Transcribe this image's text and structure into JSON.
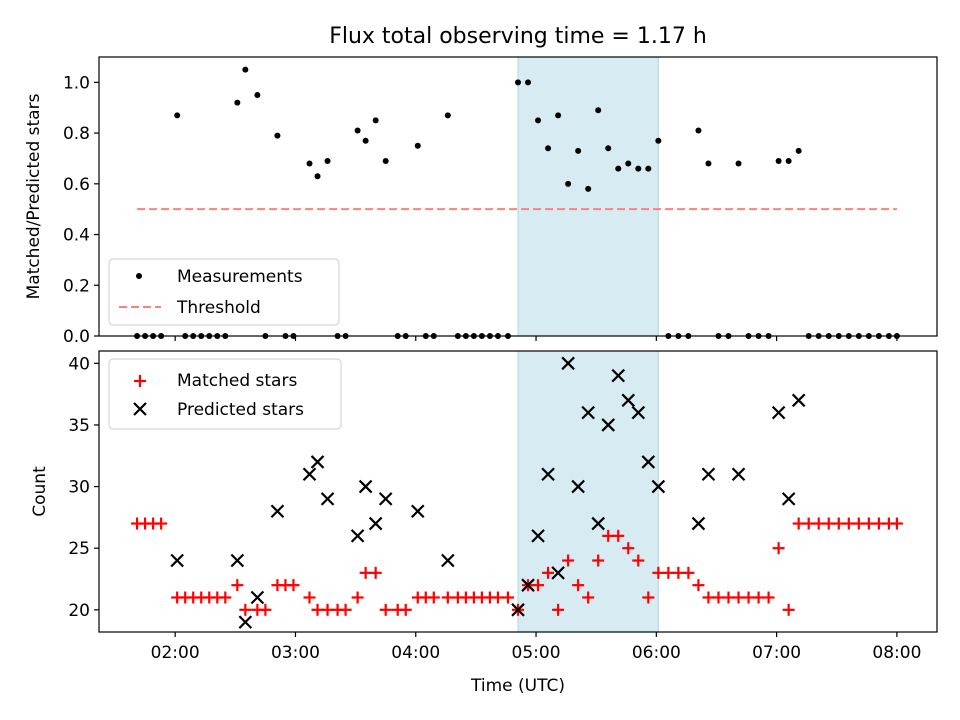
{
  "title": "Flux total observing time = 1.17 h",
  "colors": {
    "measurement": "#000000",
    "threshold": "#ff7f7f",
    "matched": "#ff0000",
    "predicted": "#000000",
    "highlight": "#add8e6"
  },
  "chart_data": [
    {
      "type": "scatter",
      "ylabel": "Matched/Predicted stars",
      "ylim": [
        0,
        1.1
      ],
      "yticks": [
        "0.0",
        "0.2",
        "0.4",
        "0.6",
        "0.8",
        "1.0"
      ],
      "xlim": [
        "01:22",
        "08:20"
      ],
      "highlight_span": [
        "04:51",
        "06:01"
      ],
      "legend": {
        "placement": "lower-left",
        "measurements_label": "Measurements",
        "threshold_label": "Threshold"
      },
      "threshold": {
        "value": 0.5,
        "x_range": [
          "01:41",
          "08:00"
        ]
      },
      "measurements": [
        {
          "t": "01:41",
          "v": 0
        },
        {
          "t": "01:45",
          "v": 0
        },
        {
          "t": "01:49",
          "v": 0
        },
        {
          "t": "01:53",
          "v": 0
        },
        {
          "t": "02:01",
          "v": 0.87
        },
        {
          "t": "02:05",
          "v": 0
        },
        {
          "t": "02:09",
          "v": 0
        },
        {
          "t": "02:13",
          "v": 0
        },
        {
          "t": "02:17",
          "v": 0
        },
        {
          "t": "02:21",
          "v": 0
        },
        {
          "t": "02:25",
          "v": 0
        },
        {
          "t": "02:31",
          "v": 0.92
        },
        {
          "t": "02:35",
          "v": 1.05
        },
        {
          "t": "02:41",
          "v": 0.95
        },
        {
          "t": "02:45",
          "v": 0
        },
        {
          "t": "02:51",
          "v": 0.79
        },
        {
          "t": "02:55",
          "v": 0
        },
        {
          "t": "02:59",
          "v": 0
        },
        {
          "t": "03:07",
          "v": 0.68
        },
        {
          "t": "03:11",
          "v": 0.63
        },
        {
          "t": "03:16",
          "v": 0.69
        },
        {
          "t": "03:21",
          "v": 0
        },
        {
          "t": "03:25",
          "v": 0
        },
        {
          "t": "03:31",
          "v": 0.81
        },
        {
          "t": "03:35",
          "v": 0.77
        },
        {
          "t": "03:40",
          "v": 0.85
        },
        {
          "t": "03:45",
          "v": 0.69
        },
        {
          "t": "03:51",
          "v": 0
        },
        {
          "t": "03:55",
          "v": 0
        },
        {
          "t": "04:01",
          "v": 0.75
        },
        {
          "t": "04:05",
          "v": 0
        },
        {
          "t": "04:09",
          "v": 0
        },
        {
          "t": "04:16",
          "v": 0.87
        },
        {
          "t": "04:21",
          "v": 0
        },
        {
          "t": "04:25",
          "v": 0
        },
        {
          "t": "04:29",
          "v": 0
        },
        {
          "t": "04:33",
          "v": 0
        },
        {
          "t": "04:37",
          "v": 0
        },
        {
          "t": "04:41",
          "v": 0
        },
        {
          "t": "04:46",
          "v": 0
        },
        {
          "t": "04:51",
          "v": 1.0
        },
        {
          "t": "04:56",
          "v": 1.0
        },
        {
          "t": "05:01",
          "v": 0.85
        },
        {
          "t": "05:06",
          "v": 0.74
        },
        {
          "t": "05:11",
          "v": 0.87
        },
        {
          "t": "05:16",
          "v": 0.6
        },
        {
          "t": "05:21",
          "v": 0.73
        },
        {
          "t": "05:26",
          "v": 0.58
        },
        {
          "t": "05:31",
          "v": 0.89
        },
        {
          "t": "05:36",
          "v": 0.74
        },
        {
          "t": "05:41",
          "v": 0.66
        },
        {
          "t": "05:46",
          "v": 0.68
        },
        {
          "t": "05:51",
          "v": 0.66
        },
        {
          "t": "05:56",
          "v": 0.66
        },
        {
          "t": "06:01",
          "v": 0.77
        },
        {
          "t": "06:06",
          "v": 0
        },
        {
          "t": "06:11",
          "v": 0
        },
        {
          "t": "06:16",
          "v": 0
        },
        {
          "t": "06:21",
          "v": 0.81
        },
        {
          "t": "06:26",
          "v": 0.68
        },
        {
          "t": "06:31",
          "v": 0
        },
        {
          "t": "06:36",
          "v": 0
        },
        {
          "t": "06:41",
          "v": 0.68
        },
        {
          "t": "06:46",
          "v": 0
        },
        {
          "t": "06:51",
          "v": 0
        },
        {
          "t": "06:56",
          "v": 0
        },
        {
          "t": "07:01",
          "v": 0.69
        },
        {
          "t": "07:06",
          "v": 0.69
        },
        {
          "t": "07:11",
          "v": 0.73
        },
        {
          "t": "07:16",
          "v": 0
        },
        {
          "t": "07:21",
          "v": 0
        },
        {
          "t": "07:26",
          "v": 0
        },
        {
          "t": "07:31",
          "v": 0
        },
        {
          "t": "07:36",
          "v": 0
        },
        {
          "t": "07:41",
          "v": 0
        },
        {
          "t": "07:46",
          "v": 0
        },
        {
          "t": "07:51",
          "v": 0
        },
        {
          "t": "07:56",
          "v": 0
        },
        {
          "t": "08:00",
          "v": 0
        }
      ]
    },
    {
      "type": "scatter",
      "ylabel": "Count",
      "xlabel": "Time (UTC)",
      "ylim": [
        18.2,
        41
      ],
      "yticks": [
        "20",
        "25",
        "30",
        "35",
        "40"
      ],
      "xlim": [
        "01:22",
        "08:20"
      ],
      "xticks": [
        "02:00",
        "03:00",
        "04:00",
        "05:00",
        "06:00",
        "07:00",
        "08:00"
      ],
      "highlight_span": [
        "04:51",
        "06:01"
      ],
      "legend": {
        "placement": "upper-left",
        "matched_label": "Matched stars",
        "predicted_label": "Predicted stars"
      },
      "series": [
        {
          "name": "Matched stars",
          "points": [
            {
              "t": "01:41",
              "v": 27
            },
            {
              "t": "01:45",
              "v": 27
            },
            {
              "t": "01:49",
              "v": 27
            },
            {
              "t": "01:53",
              "v": 27
            },
            {
              "t": "02:01",
              "v": 21
            },
            {
              "t": "02:05",
              "v": 21
            },
            {
              "t": "02:09",
              "v": 21
            },
            {
              "t": "02:13",
              "v": 21
            },
            {
              "t": "02:17",
              "v": 21
            },
            {
              "t": "02:21",
              "v": 21
            },
            {
              "t": "02:25",
              "v": 21
            },
            {
              "t": "02:31",
              "v": 22
            },
            {
              "t": "02:35",
              "v": 20
            },
            {
              "t": "02:41",
              "v": 20
            },
            {
              "t": "02:45",
              "v": 20
            },
            {
              "t": "02:51",
              "v": 22
            },
            {
              "t": "02:55",
              "v": 22
            },
            {
              "t": "02:59",
              "v": 22
            },
            {
              "t": "03:07",
              "v": 21
            },
            {
              "t": "03:11",
              "v": 20
            },
            {
              "t": "03:16",
              "v": 20
            },
            {
              "t": "03:21",
              "v": 20
            },
            {
              "t": "03:25",
              "v": 20
            },
            {
              "t": "03:31",
              "v": 21
            },
            {
              "t": "03:35",
              "v": 23
            },
            {
              "t": "03:40",
              "v": 23
            },
            {
              "t": "03:45",
              "v": 20
            },
            {
              "t": "03:51",
              "v": 20
            },
            {
              "t": "03:55",
              "v": 20
            },
            {
              "t": "04:01",
              "v": 21
            },
            {
              "t": "04:05",
              "v": 21
            },
            {
              "t": "04:09",
              "v": 21
            },
            {
              "t": "04:16",
              "v": 21
            },
            {
              "t": "04:21",
              "v": 21
            },
            {
              "t": "04:25",
              "v": 21
            },
            {
              "t": "04:29",
              "v": 21
            },
            {
              "t": "04:33",
              "v": 21
            },
            {
              "t": "04:37",
              "v": 21
            },
            {
              "t": "04:41",
              "v": 21
            },
            {
              "t": "04:46",
              "v": 21
            },
            {
              "t": "04:51",
              "v": 20
            },
            {
              "t": "04:56",
              "v": 22
            },
            {
              "t": "05:01",
              "v": 22
            },
            {
              "t": "05:06",
              "v": 23
            },
            {
              "t": "05:11",
              "v": 20
            },
            {
              "t": "05:16",
              "v": 24
            },
            {
              "t": "05:21",
              "v": 22
            },
            {
              "t": "05:26",
              "v": 21
            },
            {
              "t": "05:31",
              "v": 24
            },
            {
              "t": "05:36",
              "v": 26
            },
            {
              "t": "05:41",
              "v": 26
            },
            {
              "t": "05:46",
              "v": 25
            },
            {
              "t": "05:51",
              "v": 24
            },
            {
              "t": "05:56",
              "v": 21
            },
            {
              "t": "06:01",
              "v": 23
            },
            {
              "t": "06:06",
              "v": 23
            },
            {
              "t": "06:11",
              "v": 23
            },
            {
              "t": "06:16",
              "v": 23
            },
            {
              "t": "06:21",
              "v": 22
            },
            {
              "t": "06:26",
              "v": 21
            },
            {
              "t": "06:31",
              "v": 21
            },
            {
              "t": "06:36",
              "v": 21
            },
            {
              "t": "06:41",
              "v": 21
            },
            {
              "t": "06:46",
              "v": 21
            },
            {
              "t": "06:51",
              "v": 21
            },
            {
              "t": "06:56",
              "v": 21
            },
            {
              "t": "07:01",
              "v": 25
            },
            {
              "t": "07:06",
              "v": 20
            },
            {
              "t": "07:11",
              "v": 27
            },
            {
              "t": "07:16",
              "v": 27
            },
            {
              "t": "07:21",
              "v": 27
            },
            {
              "t": "07:26",
              "v": 27
            },
            {
              "t": "07:31",
              "v": 27
            },
            {
              "t": "07:36",
              "v": 27
            },
            {
              "t": "07:41",
              "v": 27
            },
            {
              "t": "07:46",
              "v": 27
            },
            {
              "t": "07:51",
              "v": 27
            },
            {
              "t": "07:56",
              "v": 27
            },
            {
              "t": "08:00",
              "v": 27
            }
          ]
        },
        {
          "name": "Predicted stars",
          "points": [
            {
              "t": "02:01",
              "v": 24
            },
            {
              "t": "02:31",
              "v": 24
            },
            {
              "t": "02:35",
              "v": 19
            },
            {
              "t": "02:41",
              "v": 21
            },
            {
              "t": "02:51",
              "v": 28
            },
            {
              "t": "03:07",
              "v": 31
            },
            {
              "t": "03:11",
              "v": 32
            },
            {
              "t": "03:16",
              "v": 29
            },
            {
              "t": "03:31",
              "v": 26
            },
            {
              "t": "03:35",
              "v": 30
            },
            {
              "t": "03:40",
              "v": 27
            },
            {
              "t": "03:45",
              "v": 29
            },
            {
              "t": "04:01",
              "v": 28
            },
            {
              "t": "04:16",
              "v": 24
            },
            {
              "t": "04:51",
              "v": 20
            },
            {
              "t": "04:56",
              "v": 22
            },
            {
              "t": "05:01",
              "v": 26
            },
            {
              "t": "05:06",
              "v": 31
            },
            {
              "t": "05:11",
              "v": 23
            },
            {
              "t": "05:16",
              "v": 40
            },
            {
              "t": "05:21",
              "v": 30
            },
            {
              "t": "05:26",
              "v": 36
            },
            {
              "t": "05:31",
              "v": 27
            },
            {
              "t": "05:36",
              "v": 35
            },
            {
              "t": "05:41",
              "v": 39
            },
            {
              "t": "05:46",
              "v": 37
            },
            {
              "t": "05:51",
              "v": 36
            },
            {
              "t": "05:56",
              "v": 32
            },
            {
              "t": "06:01",
              "v": 30
            },
            {
              "t": "06:21",
              "v": 27
            },
            {
              "t": "06:26",
              "v": 31
            },
            {
              "t": "06:41",
              "v": 31
            },
            {
              "t": "07:01",
              "v": 36
            },
            {
              "t": "07:06",
              "v": 29
            },
            {
              "t": "07:11",
              "v": 37
            }
          ]
        }
      ]
    }
  ]
}
